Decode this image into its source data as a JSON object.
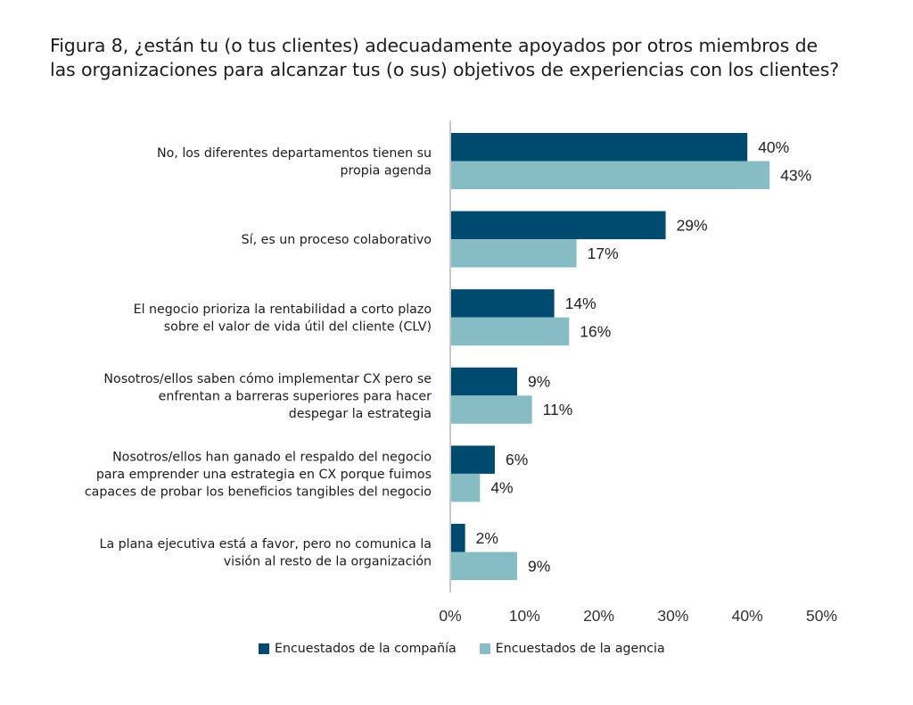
{
  "colors": {
    "company": "#004a70",
    "agency": "#88bcc4",
    "axis": "#c8c8c8"
  },
  "chart_data": {
    "type": "bar",
    "orientation": "horizontal",
    "title": "Figura 8, ¿están tu (o tus clientes) adecuadamente apoyados por otros miembros de las organizaciones para alcanzar tus (o sus) objetivos de experiencias con los clientes?",
    "title_lines": [
      "Figura 8, ¿están tu (o tus clientes) adecuadamente apoyados por otros miembros de",
      "las organizaciones para alcanzar tus (o sus) objetivos de experiencias con los clientes?"
    ],
    "categories": [
      [
        "No, los diferentes departamentos tienen su",
        "propia agenda"
      ],
      [
        "Sí, es un proceso colaborativo"
      ],
      [
        "El negocio prioriza la rentabilidad a corto plazo",
        "sobre el valor de vida útil del cliente (CLV)"
      ],
      [
        "Nosotros/ellos saben cómo implementar CX pero se",
        "enfrentan a barreras superiores para hacer",
        "despegar la estrategia"
      ],
      [
        "Nosotros/ellos han ganado el respaldo del negocio",
        "para emprender una estrategia en CX porque fuimos",
        "capaces de probar los beneficios tangibles del negocio"
      ],
      [
        "La plana ejecutiva está a favor, pero no comunica la",
        "visión al resto de la organización"
      ]
    ],
    "series": [
      {
        "name": "Encuestados de la compañía",
        "values": [
          40,
          29,
          14,
          9,
          6,
          2
        ],
        "labels": [
          "40%",
          "29%",
          "14%",
          "9%",
          "6%",
          "2%"
        ]
      },
      {
        "name": "Encuestados de la agencia",
        "values": [
          43,
          17,
          16,
          11,
          4,
          9
        ],
        "labels": [
          "43%",
          "17%",
          "16%",
          "11%",
          "4%",
          "9%"
        ]
      }
    ],
    "xlim": [
      0,
      50
    ],
    "xticks": [
      0,
      10,
      20,
      30,
      40,
      50
    ],
    "xtick_labels": [
      "0%",
      "10%",
      "20%",
      "30%",
      "40%",
      "50%"
    ],
    "xlabel": "",
    "ylabel": "",
    "grid": false,
    "legend_position": "bottom-center"
  },
  "legend": {
    "company_label": "Encuestados de la compañía",
    "agency_label": "Encuestados de la agencia"
  }
}
